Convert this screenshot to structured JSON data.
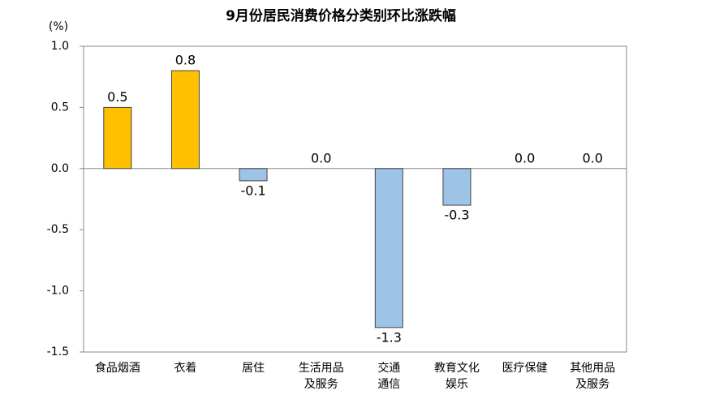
{
  "chart_data": {
    "type": "bar",
    "title": "9月份居民消费价格分类别环比涨跌幅",
    "y_label": "(%)",
    "categories": [
      "食品烟酒",
      "衣着",
      "居住",
      "生活用品\n及服务",
      "交通\n通信",
      "教育文化\n娱乐",
      "医疗保健",
      "其他用品\n及服务"
    ],
    "values": [
      0.5,
      0.8,
      -0.1,
      0,
      -1.3,
      -0.3,
      0,
      0
    ],
    "value_labels": [
      "0.5",
      "0.8",
      "-0.1",
      "0.0",
      "-1.3",
      "-0.3",
      "0.0",
      "0.0"
    ],
    "colors": [
      "#FFC000",
      "#FFC000",
      "#9DC3E6",
      "#9DC3E6",
      "#9DC3E6",
      "#9DC3E6",
      "#9DC3E6",
      "#9DC3E6"
    ],
    "ylim": [
      -1.5,
      1.0
    ],
    "yticks": [
      {
        "value": 1.0,
        "label": "1.0"
      },
      0.5,
      {
        "value": 0,
        "label": "0.0"
      },
      -0.5,
      {
        "value": -1.0,
        "label": "-1.0"
      },
      -1.5
    ]
  }
}
